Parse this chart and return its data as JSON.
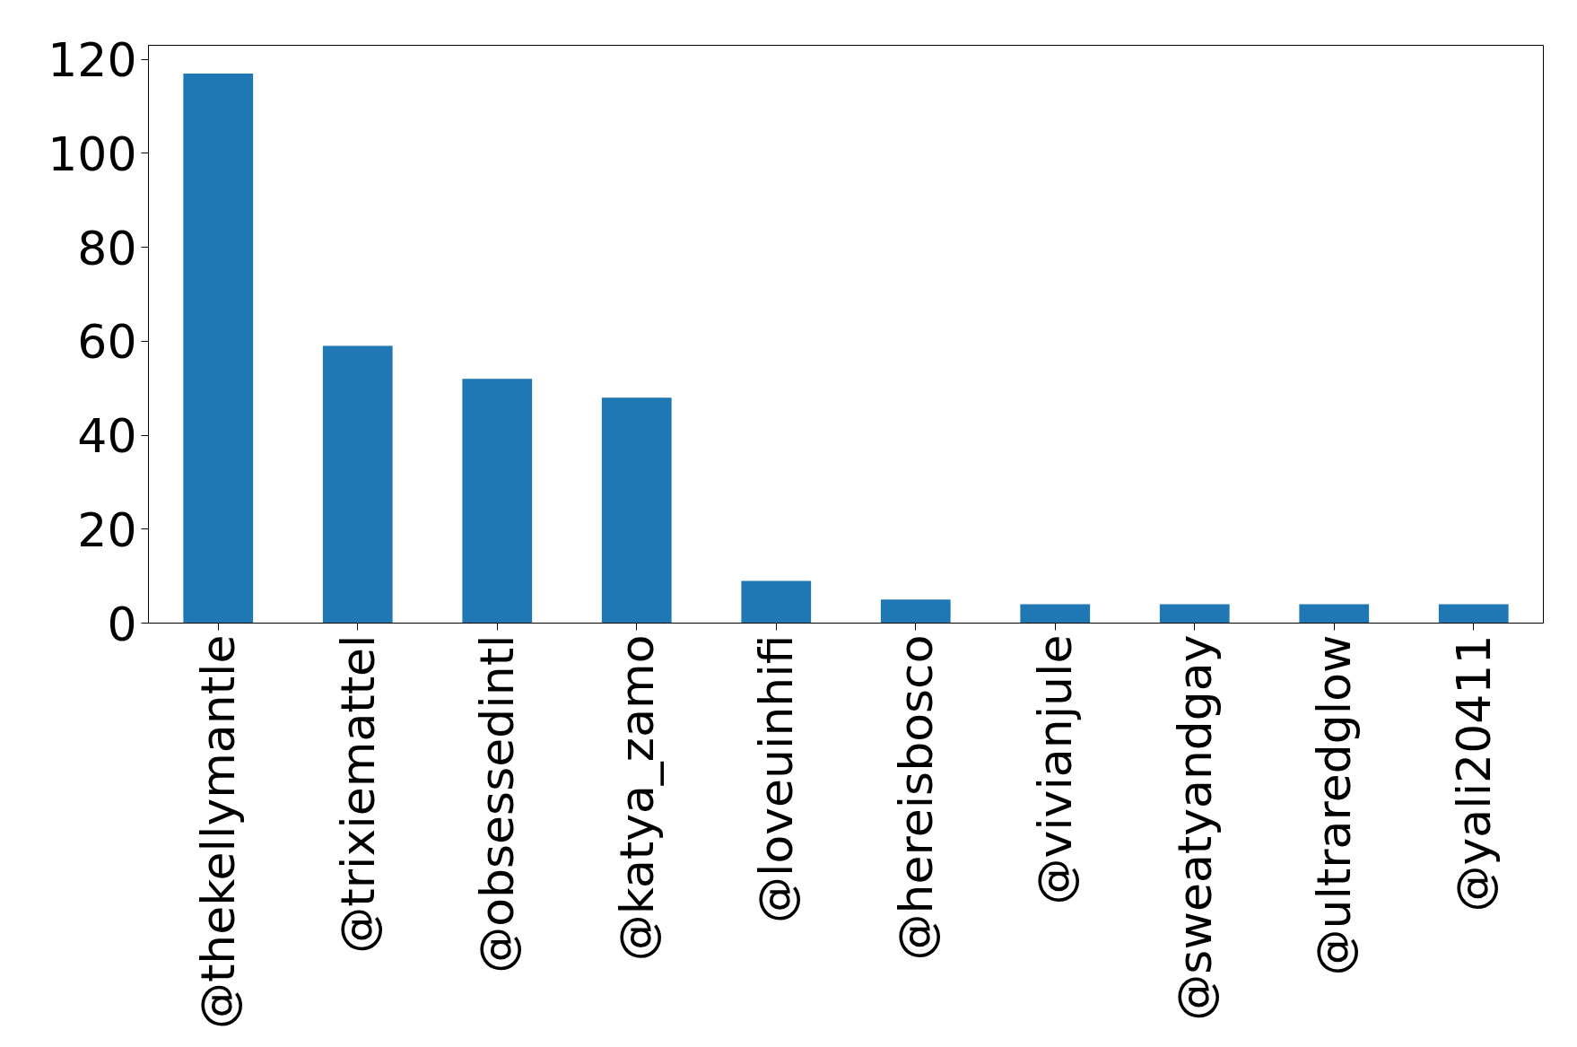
{
  "chart_data": {
    "type": "bar",
    "categories": [
      "@thekellymantle",
      "@trixiemattel",
      "@obsessedintl",
      "@katya_zamo",
      "@loveuinhifi",
      "@hereisbosco",
      "@vivianjule",
      "@sweatyandgay",
      "@ultraredglow",
      "@yali20411"
    ],
    "values": [
      117,
      59,
      52,
      48,
      9,
      5,
      4,
      4,
      4,
      4
    ],
    "color": "#1f77b4",
    "ylim": [
      0,
      123
    ],
    "yticks": [
      0,
      20,
      40,
      60,
      80,
      100,
      120
    ],
    "grid": false
  }
}
